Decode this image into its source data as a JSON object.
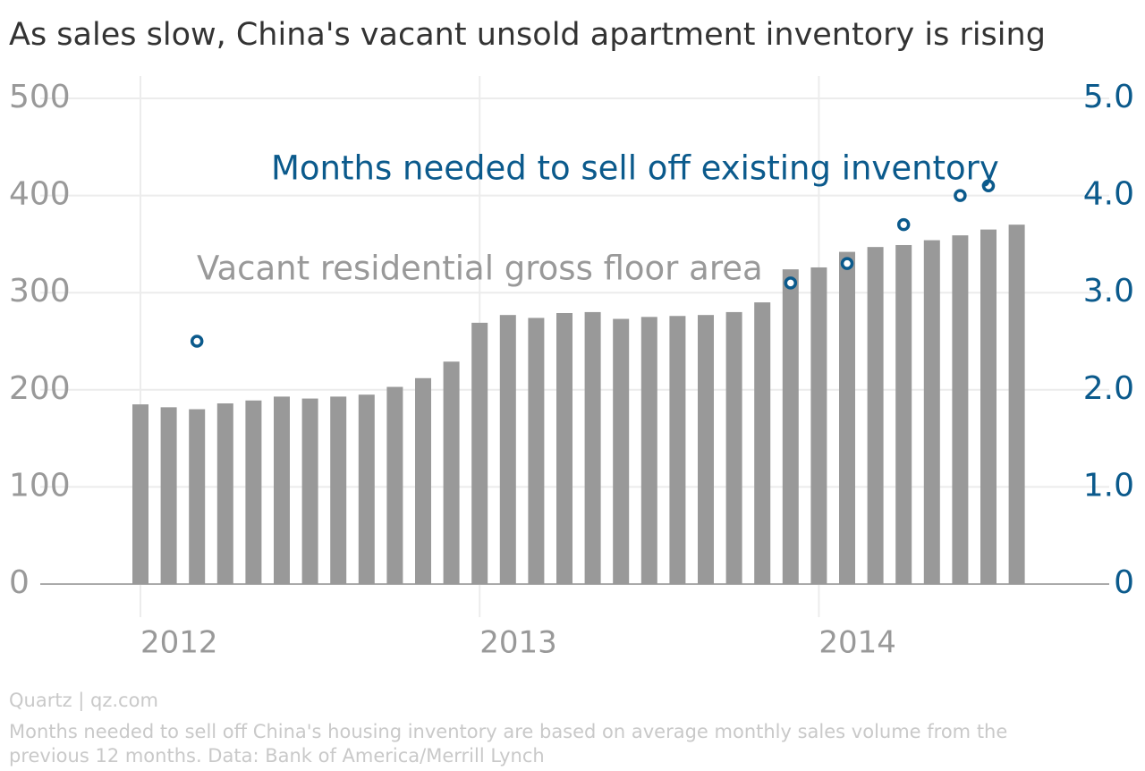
{
  "chart_data": {
    "type": "bar",
    "title": "As sales slow, China's vacant unsold apartment inventory is rising",
    "categories": [
      "2012",
      null,
      null,
      null,
      null,
      null,
      null,
      null,
      null,
      null,
      null,
      null,
      "2013",
      null,
      null,
      null,
      null,
      null,
      null,
      null,
      null,
      null,
      null,
      null,
      "2014",
      null,
      null,
      null,
      null,
      null,
      null,
      null
    ],
    "series": [
      {
        "name": "Vacant residential gross floor area",
        "color": "#999999",
        "type": "bar",
        "values": [
          185,
          182,
          180,
          186,
          189,
          193,
          191,
          193,
          195,
          203,
          212,
          229,
          269,
          277,
          274,
          279,
          280,
          273,
          275,
          276,
          277,
          280,
          290,
          324,
          326,
          342,
          347,
          349,
          354,
          359,
          365,
          370
        ]
      },
      {
        "name": "Months needed to sell off existing inventory",
        "color": "#0b5a8c",
        "type": "scatter",
        "axis": "y2",
        "values": [
          null,
          null,
          2.5,
          null,
          null,
          null,
          null,
          null,
          null,
          null,
          null,
          null,
          null,
          null,
          null,
          null,
          null,
          null,
          null,
          null,
          null,
          null,
          null,
          3.1,
          null,
          3.3,
          null,
          3.7,
          null,
          4.0,
          4.1,
          null
        ]
      }
    ],
    "ylim": [
      0,
      500
    ],
    "yticks": [
      0,
      100,
      200,
      300,
      400,
      500
    ],
    "y2lim": [
      0,
      5
    ],
    "y2ticks": [
      0,
      {
        "value": 1,
        "label": "1.0"
      },
      {
        "value": 2,
        "label": "2.0"
      },
      {
        "value": 3,
        "label": "3.0"
      },
      {
        "value": 4,
        "label": "4.0"
      },
      {
        "value": 5,
        "label": "5.0"
      }
    ],
    "grid": true,
    "source": "Quartz | qz.com",
    "note": "Months needed to sell off China's housing inventory are based on average monthly sales volume from the previous 12 months. Data: Bank of America/Merrill Lynch"
  }
}
